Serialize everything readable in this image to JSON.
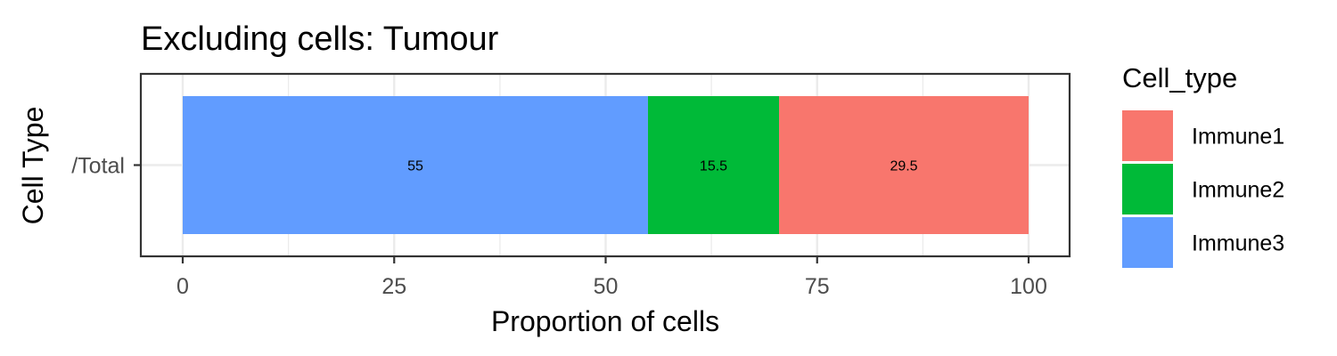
{
  "chart_data": {
    "type": "bar",
    "orientation": "horizontal",
    "stacked": true,
    "title": "Excluding cells: Tumour",
    "xlabel": "Proportion of cells",
    "ylabel": "Cell Type",
    "xlim": [
      0,
      100
    ],
    "x_ticks": [
      0,
      25,
      50,
      75,
      100
    ],
    "categories": [
      "/Total"
    ],
    "series": [
      {
        "name": "Immune3",
        "color": "#619CFF",
        "values": [
          55
        ]
      },
      {
        "name": "Immune2",
        "color": "#00BA38",
        "values": [
          15.5
        ]
      },
      {
        "name": "Immune1",
        "color": "#F8766D",
        "values": [
          29.5
        ]
      }
    ],
    "legend": {
      "title": "Cell_type",
      "position": "right",
      "entries": [
        {
          "label": "Immune1",
          "color": "#F8766D"
        },
        {
          "label": "Immune2",
          "color": "#00BA38"
        },
        {
          "label": "Immune3",
          "color": "#619CFF"
        }
      ]
    },
    "grid": true
  }
}
